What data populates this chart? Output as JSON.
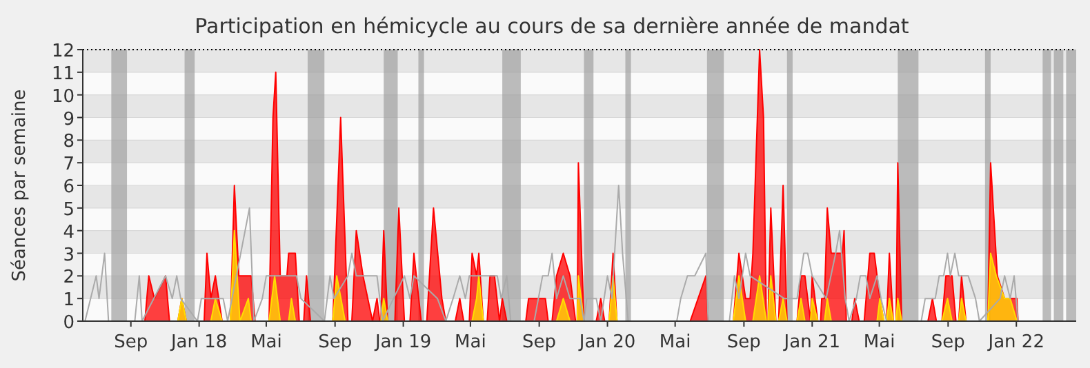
{
  "chart_data": {
    "type": "area",
    "title": "Participation en hémicycle au cours de sa dernière année de mandat",
    "ylabel": "Séances par semaine",
    "xlim": [
      "2017-06-07",
      "2022-04-18"
    ],
    "xticks": [
      {
        "value": "2017-09-01",
        "label": "Sep"
      },
      {
        "value": "2018-01-01",
        "label": "Jan 18"
      },
      {
        "value": "2018-05-01",
        "label": "Mai"
      },
      {
        "value": "2018-09-01",
        "label": "Sep"
      },
      {
        "value": "2019-01-01",
        "label": "Jan 19"
      },
      {
        "value": "2019-05-01",
        "label": "Mai"
      },
      {
        "value": "2019-09-01",
        "label": "Sep"
      },
      {
        "value": "2020-01-01",
        "label": "Jan 20"
      },
      {
        "value": "2020-05-01",
        "label": "Mai"
      },
      {
        "value": "2020-09-01",
        "label": "Sep"
      },
      {
        "value": "2021-01-01",
        "label": "Jan 21"
      },
      {
        "value": "2021-05-01",
        "label": "Mai"
      },
      {
        "value": "2021-09-01",
        "label": "Sep"
      },
      {
        "value": "2022-01-01",
        "label": "Jan 22"
      }
    ],
    "ylim": [
      0,
      12
    ],
    "yticks": [
      0,
      1,
      2,
      3,
      4,
      5,
      6,
      7,
      8,
      9,
      10,
      11,
      12
    ],
    "grid": "y",
    "bands": [
      {
        "axis": "x",
        "from": "2017-07-28",
        "to": "2017-08-25",
        "color": "#a0a0a0"
      },
      {
        "axis": "x",
        "from": "2017-12-06",
        "to": "2017-12-24",
        "color": "#a0a0a0"
      },
      {
        "axis": "x",
        "from": "2018-07-14",
        "to": "2018-08-13",
        "color": "#a0a0a0"
      },
      {
        "axis": "x",
        "from": "2018-11-27",
        "to": "2018-12-22",
        "color": "#a0a0a0"
      },
      {
        "axis": "x",
        "from": "2019-01-28",
        "to": "2019-02-07",
        "color": "#a0a0a0"
      },
      {
        "axis": "x",
        "from": "2019-06-27",
        "to": "2019-07-30",
        "color": "#a0a0a0"
      },
      {
        "axis": "x",
        "from": "2019-11-20",
        "to": "2019-12-07",
        "color": "#a0a0a0"
      },
      {
        "axis": "x",
        "from": "2020-02-02",
        "to": "2020-02-12",
        "color": "#a0a0a0"
      },
      {
        "axis": "x",
        "from": "2020-06-27",
        "to": "2020-07-27",
        "color": "#a0a0a0"
      },
      {
        "axis": "x",
        "from": "2020-11-17",
        "to": "2020-11-27",
        "color": "#a0a0a0"
      },
      {
        "axis": "x",
        "from": "2021-06-03",
        "to": "2021-07-10",
        "color": "#a0a0a0"
      },
      {
        "axis": "x",
        "from": "2021-11-06",
        "to": "2021-11-16",
        "color": "#a0a0a0"
      },
      {
        "axis": "x",
        "from": "2022-02-17",
        "to": "2022-03-04",
        "color": "#a0a0a0"
      },
      {
        "axis": "x",
        "from": "2022-03-09",
        "to": "2022-03-26",
        "color": "#a0a0a0"
      },
      {
        "axis": "x",
        "from": "2022-03-31",
        "to": "2022-04-18",
        "color": "#a0a0a0"
      }
    ],
    "series": [
      {
        "type": "line",
        "color": "#aaaaaa",
        "x": [
          "2017-06-11",
          "2017-07-01",
          "2017-07-06",
          "2017-07-16",
          "2017-07-23",
          "2017-09-08",
          "2017-09-16",
          "2017-09-21",
          "2017-11-02",
          "2017-11-14",
          "2017-11-22",
          "2017-11-29",
          "2017-12-29",
          "2018-01-05",
          "2018-01-15",
          "2018-02-13",
          "2018-02-21",
          "2018-04-01",
          "2018-04-09",
          "2018-04-24",
          "2018-05-01",
          "2018-05-11",
          "2018-06-24",
          "2018-07-02",
          "2018-08-13",
          "2018-08-23",
          "2018-08-30",
          "2018-09-24",
          "2018-10-01",
          "2018-10-09",
          "2018-10-26",
          "2018-11-15",
          "2018-11-25",
          "2019-01-03",
          "2019-01-13",
          "2019-01-20",
          "2019-03-03",
          "2019-03-18",
          "2019-03-31",
          "2019-04-12",
          "2019-04-22",
          "2019-04-29",
          "2019-05-16",
          "2019-06-18",
          "2019-06-25",
          "2019-07-05",
          "2019-07-12",
          "2019-08-23",
          "2019-09-07",
          "2019-09-17",
          "2019-09-24",
          "2019-10-02",
          "2019-10-14",
          "2019-10-26",
          "2019-11-13",
          "2019-11-20",
          "2019-11-25",
          "2019-12-12",
          "2019-12-20",
          "2020-01-01",
          "2020-01-09",
          "2020-01-21",
          "2020-01-28",
          "2020-02-07",
          "2020-05-04",
          "2020-05-11",
          "2020-05-23",
          "2020-06-05",
          "2020-06-25",
          "2020-06-29",
          "2020-08-06",
          "2020-08-15",
          "2020-08-23",
          "2020-09-04",
          "2020-09-12",
          "2020-11-12",
          "2020-12-05",
          "2020-12-17",
          "2020-12-24",
          "2021-01-01",
          "2021-01-26",
          "2021-02-12",
          "2021-02-19",
          "2021-03-01",
          "2021-03-08",
          "2021-03-21",
          "2021-03-28",
          "2021-04-07",
          "2021-04-14",
          "2021-04-27",
          "2021-05-04",
          "2021-05-14",
          "2021-07-15",
          "2021-07-22",
          "2021-07-30",
          "2021-08-09",
          "2021-08-16",
          "2021-08-24",
          "2021-08-31",
          "2021-09-05",
          "2021-09-13",
          "2021-09-20",
          "2021-10-07",
          "2021-10-20",
          "2021-10-27",
          "2021-12-03",
          "2021-12-11",
          "2021-12-21",
          "2021-12-28",
          "2022-01-04"
        ],
        "values": [
          0,
          2,
          1,
          3,
          0,
          0,
          2,
          0,
          2,
          1,
          2,
          1,
          0,
          1,
          1,
          1,
          0,
          5,
          0,
          1,
          2,
          2,
          2,
          1,
          0,
          2,
          1,
          2,
          3,
          2,
          2,
          2,
          0,
          2,
          1,
          2,
          1,
          0,
          1,
          2,
          1,
          2,
          2,
          2,
          1,
          2,
          0,
          0,
          2,
          2,
          3,
          1,
          2,
          1,
          1,
          0,
          1,
          1,
          0,
          2,
          1,
          6,
          3,
          0,
          0,
          1,
          2,
          2,
          3,
          0,
          0,
          2,
          1,
          3,
          2,
          1,
          1,
          3,
          3,
          2,
          1,
          3,
          4,
          1,
          0,
          1,
          2,
          2,
          1,
          2,
          1,
          0,
          0,
          1,
          1,
          1,
          2,
          2,
          3,
          2,
          3,
          2,
          2,
          1,
          0,
          1,
          2,
          1,
          2,
          0
        ]
      },
      {
        "color": "#ff0000",
        "x": [
          "2017-06-07",
          "2017-09-26",
          "2017-10-03",
          "2017-10-13",
          "2017-11-02",
          "2017-11-09",
          "2017-11-24",
          "2017-12-01",
          "2017-12-09",
          "2018-01-10",
          "2018-01-15",
          "2018-01-22",
          "2018-01-30",
          "2018-02-11",
          "2018-02-26",
          "2018-03-05",
          "2018-03-13",
          "2018-03-15",
          "2018-04-04",
          "2018-04-11",
          "2018-05-06",
          "2018-05-13",
          "2018-05-18",
          "2018-05-26",
          "2018-06-07",
          "2018-06-10",
          "2018-06-22",
          "2018-06-29",
          "2018-07-07",
          "2018-07-12",
          "2018-07-19",
          "2018-08-28",
          "2018-09-11",
          "2018-09-24",
          "2018-10-01",
          "2018-10-09",
          "2018-10-21",
          "2018-11-07",
          "2018-11-15",
          "2018-11-20",
          "2018-11-22",
          "2018-11-27",
          "2018-12-04",
          "2018-12-17",
          "2018-12-24",
          "2019-01-03",
          "2019-01-13",
          "2019-01-20",
          "2019-02-02",
          "2019-02-12",
          "2019-02-24",
          "2019-03-11",
          "2019-03-18",
          "2019-04-04",
          "2019-04-12",
          "2019-04-19",
          "2019-04-29",
          "2019-05-04",
          "2019-05-12",
          "2019-05-16",
          "2019-05-24",
          "2019-05-31",
          "2019-06-05",
          "2019-06-13",
          "2019-06-22",
          "2019-06-27",
          "2019-07-05",
          "2019-08-08",
          "2019-08-13",
          "2019-09-12",
          "2019-09-17",
          "2019-09-24",
          "2019-10-02",
          "2019-10-14",
          "2019-10-26",
          "2019-11-05",
          "2019-11-08",
          "2019-11-10",
          "2019-11-20",
          "2019-12-12",
          "2019-12-20",
          "2019-12-27",
          "2020-01-04",
          "2020-01-11",
          "2020-01-18",
          "2020-05-28",
          "2020-06-25",
          "2020-06-29",
          "2020-08-13",
          "2020-08-23",
          "2020-09-04",
          "2020-09-12",
          "2020-09-17",
          "2020-09-29",
          "2020-10-06",
          "2020-10-11",
          "2020-10-14",
          "2020-10-19",
          "2020-10-28",
          "2020-11-02",
          "2020-11-10",
          "2020-11-17",
          "2020-12-05",
          "2020-12-12",
          "2020-12-19",
          "2020-12-29",
          "2021-01-01",
          "2021-01-11",
          "2021-01-16",
          "2021-01-18",
          "2021-01-23",
          "2021-01-28",
          "2021-02-04",
          "2021-02-24",
          "2021-02-27",
          "2021-03-03",
          "2021-03-13",
          "2021-03-18",
          "2021-03-26",
          "2021-04-04",
          "2021-04-14",
          "2021-04-22",
          "2021-05-02",
          "2021-05-09",
          "2021-05-14",
          "2021-05-19",
          "2021-05-26",
          "2021-05-31",
          "2021-06-03",
          "2021-06-10",
          "2021-07-27",
          "2021-08-04",
          "2021-08-11",
          "2021-08-21",
          "2021-08-28",
          "2021-09-08",
          "2021-09-15",
          "2021-09-20",
          "2021-09-25",
          "2021-10-03",
          "2021-11-11",
          "2021-11-16",
          "2021-11-28",
          "2021-12-11",
          "2022-01-02",
          "2022-01-04",
          "2022-04-18"
        ],
        "values": [
          0,
          0,
          2,
          1,
          2,
          0,
          0,
          1,
          0,
          0,
          3,
          1,
          2,
          0,
          0,
          6,
          2,
          2,
          2,
          0,
          0,
          9,
          11,
          2,
          2,
          3,
          3,
          0,
          0,
          2,
          0,
          0,
          9,
          0,
          0,
          4,
          2,
          0,
          1,
          0,
          0,
          4,
          0,
          0,
          5,
          0,
          0,
          3,
          0,
          0,
          5,
          1,
          0,
          0,
          1,
          0,
          0,
          3,
          2,
          3,
          0,
          0,
          2,
          2,
          0,
          1,
          0,
          0,
          1,
          1,
          0,
          0,
          2,
          3,
          2,
          0,
          0,
          7,
          0,
          0,
          1,
          0,
          0,
          3,
          0,
          0,
          2,
          0,
          0,
          3,
          1,
          1,
          3,
          12,
          9,
          0,
          0,
          5,
          0,
          0,
          6,
          0,
          0,
          2,
          2,
          0,
          2,
          0,
          0,
          1,
          1,
          5,
          3,
          3,
          4,
          0,
          0,
          1,
          0,
          0,
          3,
          3,
          1,
          0,
          0,
          3,
          0,
          0,
          7,
          0,
          0,
          1,
          0,
          0,
          2,
          2,
          0,
          0,
          2,
          0,
          0,
          7,
          2,
          1,
          1,
          0,
          0
        ]
      },
      {
        "color": "#ffdd00",
        "x": [
          "2017-06-07",
          "2017-11-24",
          "2017-12-01",
          "2017-12-09",
          "2018-01-22",
          "2018-01-30",
          "2018-02-11",
          "2018-02-26",
          "2018-03-05",
          "2018-03-15",
          "2018-03-30",
          "2018-04-04",
          "2018-05-06",
          "2018-05-16",
          "2018-05-26",
          "2018-06-10",
          "2018-06-15",
          "2018-06-22",
          "2018-08-28",
          "2018-09-04",
          "2018-09-19",
          "2018-11-22",
          "2018-11-27",
          "2018-12-04",
          "2019-05-04",
          "2019-05-12",
          "2019-05-16",
          "2019-05-24",
          "2019-10-02",
          "2019-10-14",
          "2019-10-26",
          "2019-11-08",
          "2019-11-10",
          "2019-11-20",
          "2020-01-04",
          "2020-01-11",
          "2020-01-18",
          "2020-08-13",
          "2020-08-23",
          "2020-09-04",
          "2020-09-17",
          "2020-09-29",
          "2020-10-11",
          "2020-10-14",
          "2020-10-19",
          "2020-10-28",
          "2020-11-02",
          "2020-11-10",
          "2020-11-17",
          "2020-12-05",
          "2020-12-12",
          "2020-12-19",
          "2020-12-29",
          "2021-01-01",
          "2021-01-11",
          "2021-01-23",
          "2021-01-28",
          "2021-02-04",
          "2021-04-27",
          "2021-05-02",
          "2021-05-09",
          "2021-05-14",
          "2021-05-19",
          "2021-05-26",
          "2021-05-31",
          "2021-06-03",
          "2021-06-10",
          "2021-08-21",
          "2021-08-31",
          "2021-09-08",
          "2021-09-20",
          "2021-09-25",
          "2021-10-03",
          "2021-11-11",
          "2021-11-16",
          "2021-11-26",
          "2021-12-11",
          "2021-12-21",
          "2022-01-02",
          "2022-04-18"
        ],
        "values": [
          0,
          0,
          1,
          0,
          0,
          1,
          0,
          0,
          4,
          0,
          1,
          0,
          0,
          2,
          0,
          0,
          1,
          0,
          0,
          2,
          0,
          0,
          1,
          0,
          0,
          1,
          2,
          0,
          0,
          1,
          0,
          0,
          2,
          0,
          0,
          2,
          0,
          0,
          2,
          0,
          0,
          2,
          0,
          0,
          2,
          0,
          0,
          1,
          0,
          0,
          1,
          0,
          0,
          1,
          0,
          0,
          1,
          0,
          0,
          1,
          0,
          0,
          1,
          0,
          0,
          1,
          0,
          0,
          1,
          0,
          0,
          1,
          0,
          0,
          3,
          2,
          1,
          1,
          0,
          0
        ]
      }
    ]
  }
}
